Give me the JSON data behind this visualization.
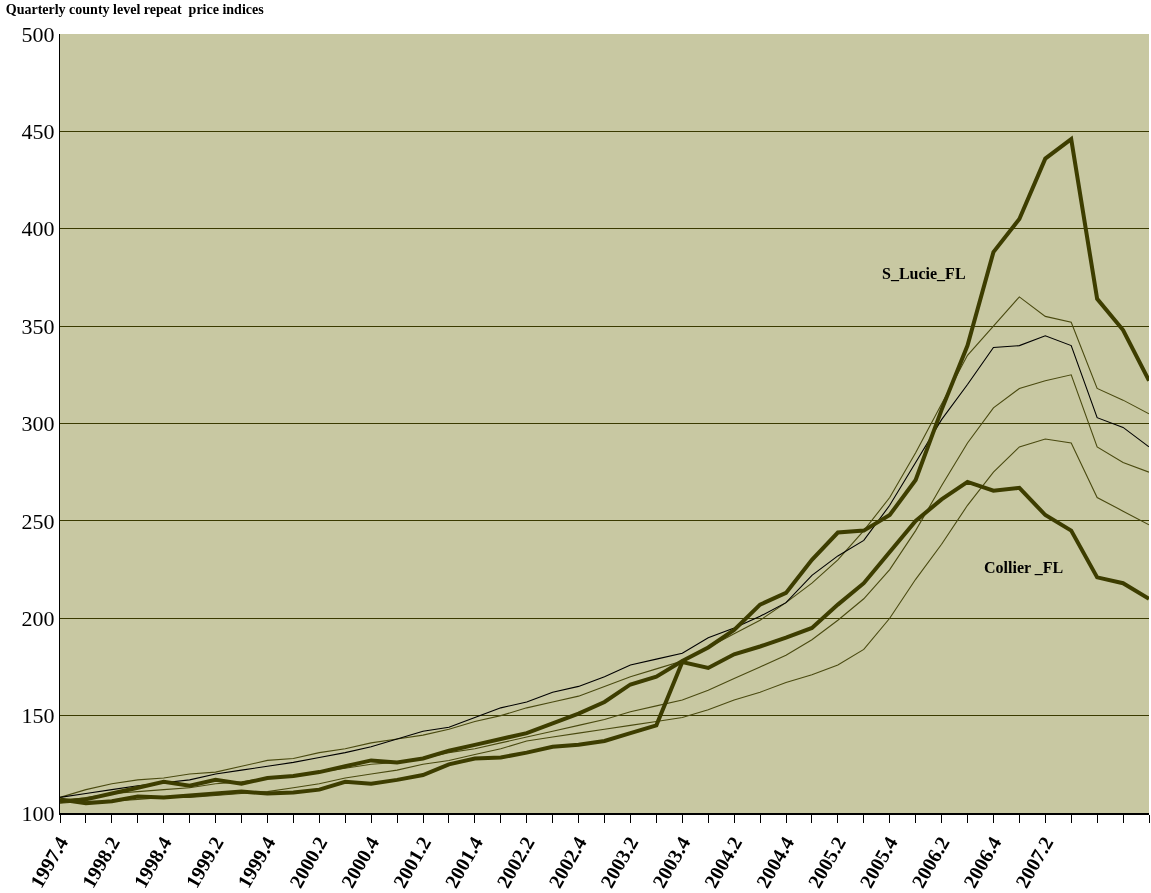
{
  "chart_data": {
    "type": "line",
    "title": "Quarterly county level repeat  price indices",
    "categories": [
      "1997.4",
      null,
      "1998.2",
      null,
      "1998.4",
      null,
      "1999.2",
      null,
      "1999.4",
      null,
      "2000.2",
      null,
      "2000.4",
      null,
      "2001.2",
      null,
      "2001.4",
      null,
      "2002.2",
      null,
      "2002.4",
      null,
      "2003.2",
      null,
      "2003.4",
      null,
      "2004.2",
      null,
      "2004.4",
      null,
      "2005.2",
      null,
      "2005.4",
      null,
      "2006.2",
      null,
      "2006.4",
      null,
      "2007.2",
      null,
      null,
      null,
      null
    ],
    "series": [
      {
        "color": "#4a4a10",
        "values": [
          105,
          106,
          106,
          107,
          108,
          108,
          109,
          110,
          111,
          113,
          115,
          118,
          120,
          122,
          125,
          127,
          130,
          133,
          137,
          139,
          141,
          143,
          145,
          147,
          149,
          153,
          158,
          162,
          167,
          171,
          176,
          184,
          200,
          220,
          238,
          258,
          275,
          288,
          292,
          290,
          262,
          255,
          248
        ]
      },
      {
        "color": "#4a4a10",
        "values": [
          106,
          108,
          110,
          111,
          112,
          113,
          115,
          116,
          118,
          119,
          121,
          123,
          125,
          126,
          128,
          131,
          133,
          136,
          139,
          142,
          145,
          148,
          152,
          155,
          158,
          163,
          169,
          175,
          181,
          189,
          199,
          210,
          225,
          245,
          268,
          290,
          308,
          318,
          322,
          325,
          288,
          280,
          275
        ]
      },
      {
        "color": "#4a4a10",
        "values": [
          108,
          112,
          115,
          117,
          118,
          120,
          121,
          124,
          127,
          128,
          131,
          133,
          136,
          138,
          140,
          143,
          147,
          150,
          154,
          157,
          160,
          165,
          170,
          174,
          178,
          185,
          192,
          199,
          208,
          218,
          230,
          245,
          262,
          285,
          310,
          335,
          350,
          365,
          355,
          352,
          318,
          312,
          305
        ]
      },
      {
        "color": "#000000",
        "values": [
          108,
          110,
          112,
          114,
          115.5,
          117,
          120,
          122,
          124,
          126,
          128.5,
          131,
          134,
          138,
          142,
          144,
          149,
          154,
          157,
          162,
          165,
          170,
          176,
          179,
          182,
          190,
          195,
          201,
          208,
          222,
          232,
          240,
          258,
          280,
          302,
          320,
          339,
          340,
          345,
          340,
          303,
          298,
          288
        ]
      },
      {
        "name": "S_Lucie_FL",
        "color": "#3d3d00",
        "values": [
          106,
          107,
          110,
          113,
          116,
          114,
          117,
          115,
          118,
          119,
          121,
          124,
          127,
          126,
          128,
          132,
          135,
          138,
          141,
          146,
          151,
          157,
          166,
          170,
          178,
          185,
          194,
          207,
          213,
          230,
          244,
          245,
          253,
          271,
          307,
          340,
          388,
          405,
          436,
          446,
          364,
          348,
          322
        ]
      },
      {
        "name": "Collier _FL",
        "color": "#3d3d00",
        "values": [
          107,
          105,
          106,
          108.5,
          108,
          109,
          110,
          111,
          110,
          110.5,
          112,
          116,
          115,
          117,
          119.5,
          125,
          128,
          128.5,
          131,
          134,
          135,
          137,
          141,
          145,
          177.5,
          174.5,
          181.5,
          185.5,
          190,
          195,
          207,
          218,
          234,
          250,
          261,
          270,
          265.5,
          267,
          253,
          245,
          221,
          218,
          210
        ]
      }
    ],
    "ylim": [
      100,
      500
    ],
    "yticks": [
      100,
      150,
      200,
      250,
      300,
      350,
      400,
      450,
      500
    ],
    "grid": "y",
    "legend": false,
    "marker": "none",
    "line_style": "solid"
  }
}
